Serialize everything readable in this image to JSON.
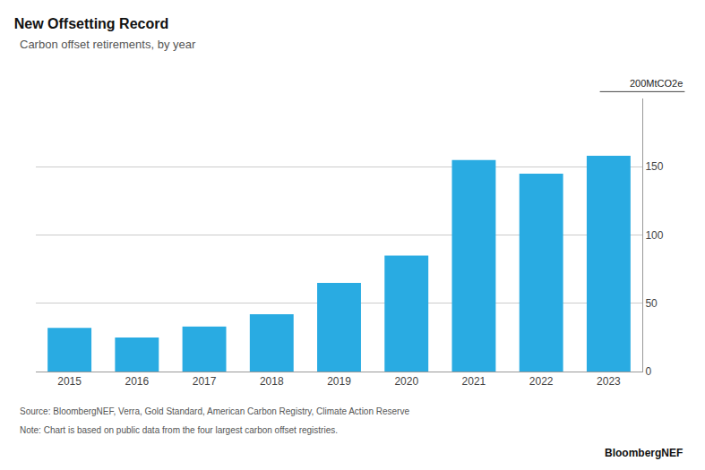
{
  "chart_data": {
    "type": "bar",
    "title": "New Offsetting Record",
    "subtitle": "Carbon offset retirements, by year",
    "categories": [
      "2015",
      "2016",
      "2017",
      "2018",
      "2019",
      "2020",
      "2021",
      "2022",
      "2023"
    ],
    "values": [
      32,
      25,
      33,
      42,
      65,
      85,
      155,
      145,
      158
    ],
    "color": "#29ABE2",
    "ylim": [
      0,
      200
    ],
    "yticks": [
      0,
      50,
      100,
      150
    ],
    "grid": true,
    "annotations": [
      "200MtCO2e",
      "Source: BloombergNEF, Verra, Gold Standard, American Carbon Registry, Climate Action Reserve",
      "Note: Chart is based on public data from the four largest carbon offset registries.",
      "BloombergNEF"
    ]
  }
}
